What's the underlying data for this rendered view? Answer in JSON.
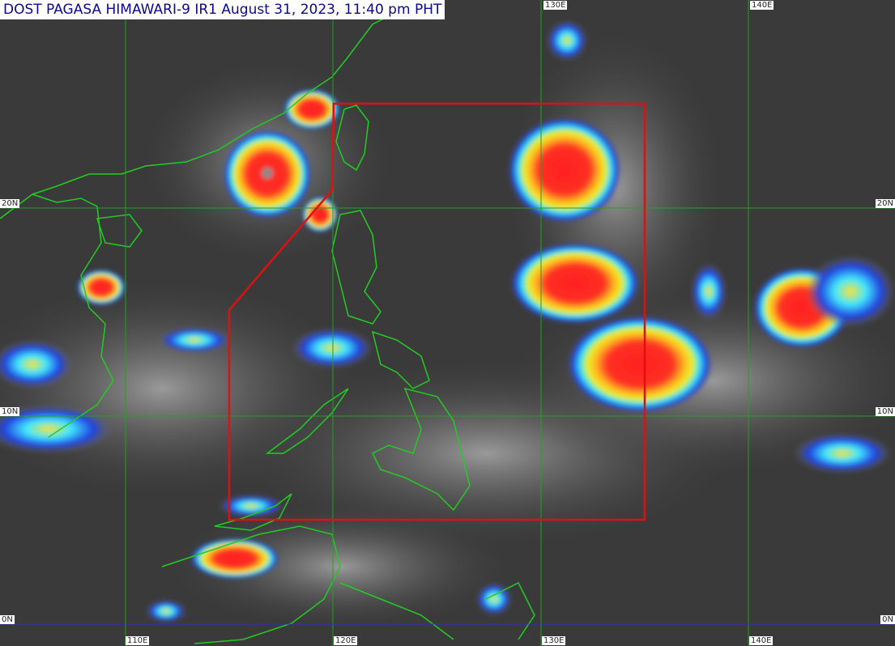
{
  "header": {
    "title": "DOST PAGASA HIMAWARI-9 IR1 August 31, 2023, 11:40 pm PHT"
  },
  "graticule": {
    "top_labels": [
      "130E",
      "140E"
    ],
    "bottom_labels": [
      "110E",
      "120E",
      "130E",
      "140E"
    ],
    "left_labels": [
      "20N",
      "10N",
      "0N"
    ],
    "right_labels": [
      "20N",
      "10N",
      "0N"
    ]
  }
}
